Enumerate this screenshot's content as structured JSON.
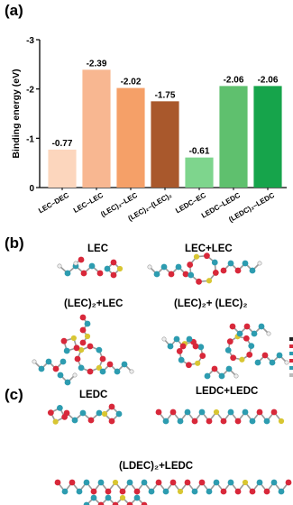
{
  "panels": {
    "a": "(a)",
    "b": "(b)",
    "c": "(c)"
  },
  "chart_data": {
    "type": "bar",
    "title": "",
    "xlabel": "",
    "ylabel": "Binding energy (eV)",
    "ylim": [
      0,
      -3
    ],
    "yticks": [
      "0",
      "-1",
      "-2",
      "-3"
    ],
    "y_inverted": true,
    "grid": false,
    "categories": [
      "LEC–DEC",
      "LEC–LEC",
      "(LEC)₂–LEC",
      "(LEC)₂–(LEC)₂",
      "LEDC–EC",
      "LEDC–LEDC",
      "(LEDC)₂–LEDC"
    ],
    "values": [
      -0.77,
      -2.39,
      -2.02,
      -1.75,
      -0.61,
      -2.06,
      -2.06
    ],
    "value_labels": [
      "-0.77",
      "-2.39",
      "-2.02",
      "-1.75",
      "-0.61",
      "-2.06",
      "-2.06"
    ],
    "colors": [
      "#fcd6bd",
      "#f8b791",
      "#f5a068",
      "#a9582c",
      "#7ed58d",
      "#5fc06e",
      "#16a44b"
    ]
  },
  "structures_b": {
    "lec": "LEC",
    "lec_lec": "LEC+LEC",
    "lec2_lec": "(LEC)₂+LEC",
    "lec2_lec2": "(LEC)₂+ (LEC)₂"
  },
  "structures_c": {
    "ledc": "LEDC",
    "ledc_ledc": "LEDC+LEDC",
    "ldec2_ledc": "(LDEC)₂+LEDC"
  },
  "atom_colors": {
    "oxygen": "#d8283a",
    "carbon": "#2d9cb0",
    "lithium": "#d8c632",
    "hydrogen": "#eeeeee"
  }
}
